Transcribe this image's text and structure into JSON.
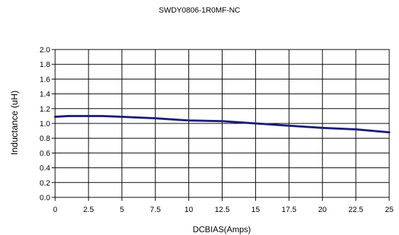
{
  "chart_data": {
    "type": "line",
    "title": "SWDY0806-1R0MF-NC",
    "xlabel": "DCBIAS(Amps)",
    "ylabel": "Inductance (uH)",
    "xlim": [
      0,
      25
    ],
    "ylim": [
      0,
      2.0
    ],
    "x_ticks": [
      "0",
      "2.5",
      "5",
      "7.5",
      "10",
      "12.5",
      "15",
      "17.5",
      "20",
      "22.5",
      "25"
    ],
    "y_ticks": [
      "0.0",
      "0.2",
      "0.4",
      "0.6",
      "0.8",
      "1.0",
      "1.2",
      "1.4",
      "1.6",
      "1.8",
      "2.0"
    ],
    "grid": true,
    "legend": "none",
    "line_color": "#1c1c78",
    "series": [
      {
        "x": [
          0,
          1,
          2,
          3.5,
          5,
          7.5,
          10,
          12.5,
          15,
          17.5,
          20,
          22.5,
          25
        ],
        "values": [
          1.09,
          1.1,
          1.1,
          1.1,
          1.09,
          1.07,
          1.04,
          1.03,
          1.0,
          0.97,
          0.94,
          0.92,
          0.88
        ]
      }
    ]
  }
}
